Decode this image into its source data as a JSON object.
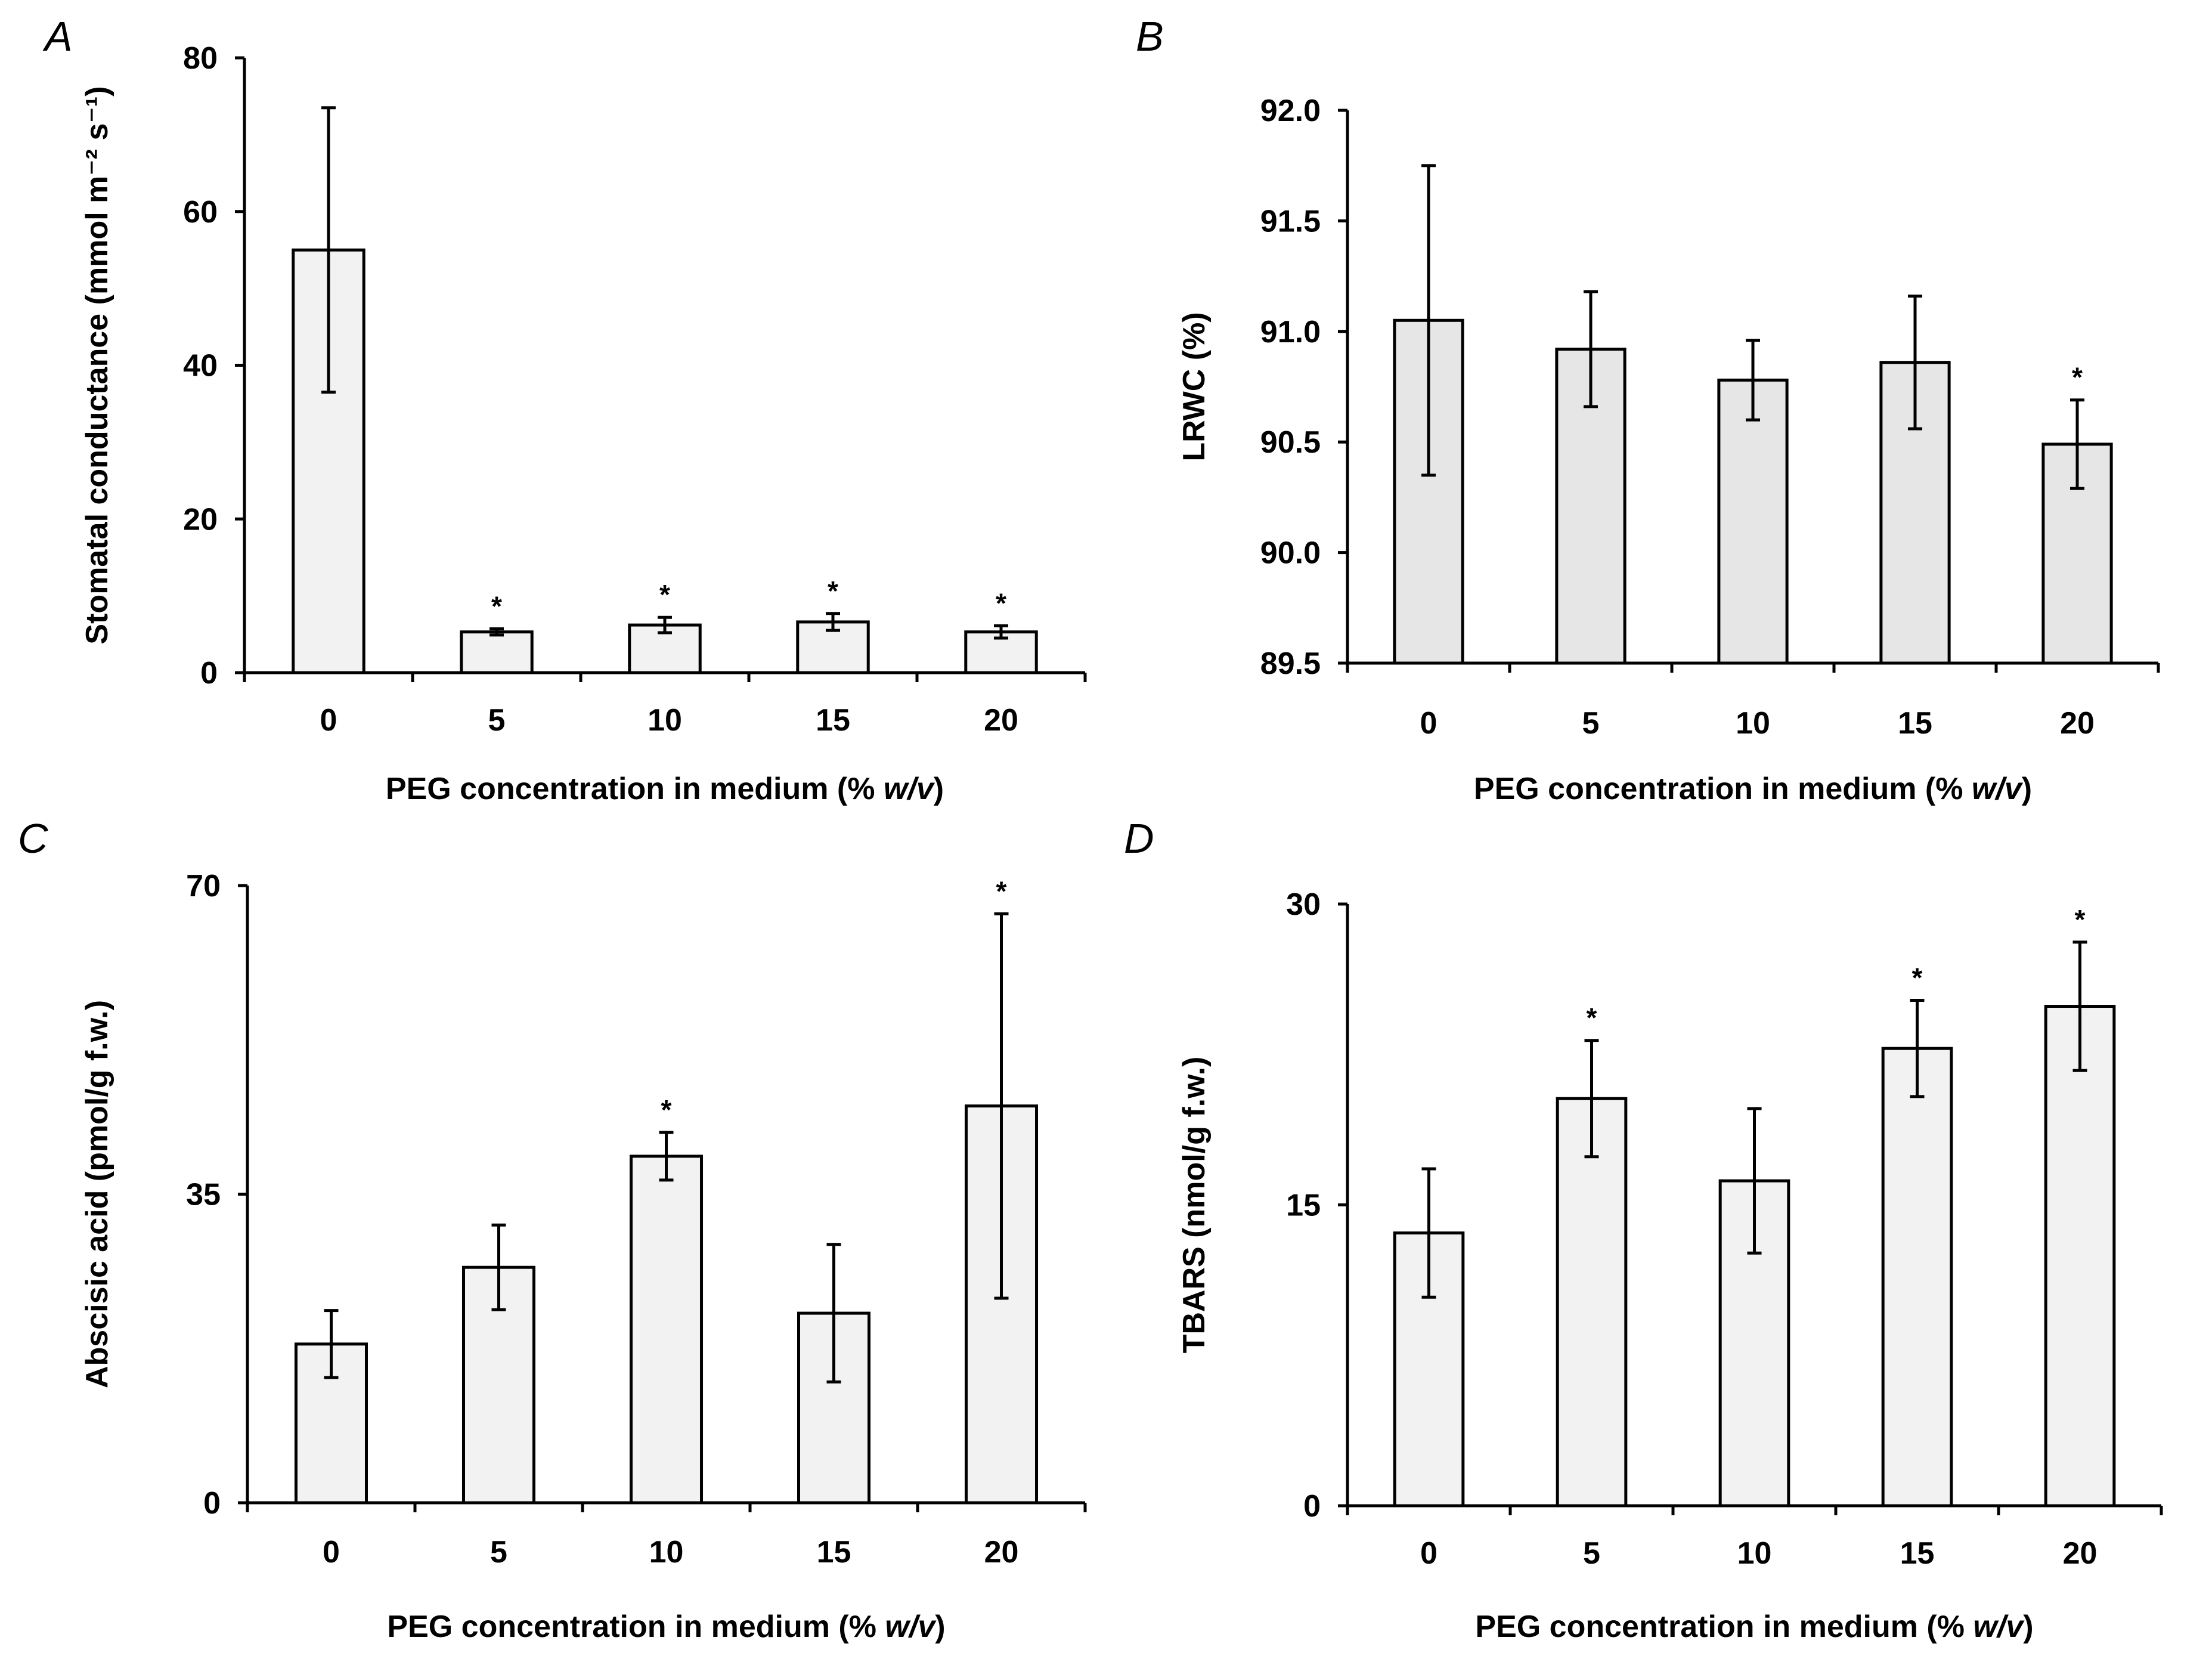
{
  "figure": {
    "shared_xlabel_prefix": "PEG concentration in medium (% ",
    "shared_xlabel_italic": "w/v",
    "shared_xlabel_suffix": ")"
  },
  "chart_data": [
    {
      "panel": "A",
      "type": "bar",
      "categories": [
        "0",
        "5",
        "10",
        "15",
        "20"
      ],
      "values": [
        55,
        5.3,
        6.2,
        6.6,
        5.3
      ],
      "errors": [
        18.5,
        0.4,
        1.0,
        1.1,
        0.8
      ],
      "significant": [
        false,
        true,
        true,
        true,
        true
      ],
      "ylabel": "Stomatal conductance (mmol m⁻² s⁻¹)",
      "ylim": [
        0,
        80
      ],
      "yticks": [
        0,
        20,
        40,
        60,
        80
      ],
      "ytick_labels": [
        "0",
        "20",
        "40",
        "60",
        "80"
      ],
      "bar_color": "#f2f2f2"
    },
    {
      "panel": "B",
      "type": "bar",
      "categories": [
        "0",
        "5",
        "10",
        "15",
        "20"
      ],
      "values": [
        91.05,
        90.92,
        90.78,
        90.86,
        90.49
      ],
      "errors": [
        0.7,
        0.26,
        0.18,
        0.3,
        0.2
      ],
      "significant": [
        false,
        false,
        false,
        false,
        true
      ],
      "ylabel": "LRWC (%)",
      "ylim": [
        89.5,
        92.0
      ],
      "yticks": [
        89.5,
        90.0,
        90.5,
        91.0,
        91.5,
        92.0
      ],
      "ytick_labels": [
        "89.5",
        "90.0",
        "90.5",
        "91.0",
        "91.5",
        "92.0"
      ],
      "bar_color": "#e6e6e6"
    },
    {
      "panel": "C",
      "type": "bar",
      "categories": [
        "0",
        "5",
        "10",
        "15",
        "20"
      ],
      "values": [
        18,
        26.7,
        39.3,
        21.5,
        45
      ],
      "errors": [
        3.8,
        4.8,
        2.7,
        7.8,
        21.8
      ],
      "significant": [
        false,
        false,
        true,
        false,
        true
      ],
      "ylabel": "Abscisic acid (pmol/g f.w.)",
      "ylim": [
        0,
        70
      ],
      "yticks": [
        0,
        35,
        70
      ],
      "ytick_labels": [
        "0",
        "35",
        "70"
      ],
      "bar_color": "#f2f2f2"
    },
    {
      "panel": "D",
      "type": "bar",
      "categories": [
        "0",
        "5",
        "10",
        "15",
        "20"
      ],
      "values": [
        13.6,
        20.3,
        16.2,
        22.8,
        24.9
      ],
      "errors": [
        3.2,
        2.9,
        3.6,
        2.4,
        3.2
      ],
      "significant": [
        false,
        true,
        false,
        true,
        true
      ],
      "ylabel": "TBARS (nmol/g f.w.)",
      "ylim": [
        0,
        30
      ],
      "yticks": [
        0,
        15,
        30
      ],
      "ytick_labels": [
        "0",
        "15",
        "30"
      ],
      "bar_color": "#f2f2f2"
    }
  ]
}
